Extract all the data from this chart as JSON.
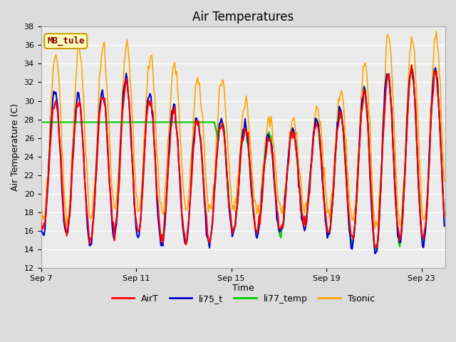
{
  "title": "Air Temperatures",
  "xlabel": "Time",
  "ylabel": "Air Temperature (C)",
  "ylim": [
    12,
    38
  ],
  "yticks": [
    12,
    14,
    16,
    18,
    20,
    22,
    24,
    26,
    28,
    30,
    32,
    34,
    36,
    38
  ],
  "annotation_label": "MB_tule",
  "annotation_color": "#8B0000",
  "annotation_bg": "#FFFFC0",
  "annotation_border": "#C8A000",
  "line_colors": {
    "AirT": "#FF0000",
    "li75_t": "#0000CC",
    "li77_temp": "#00CC00",
    "Tsonic": "#FFA500"
  },
  "x_tick_labels": [
    "Sep 7",
    "Sep 11",
    "Sep 15",
    "Sep 19",
    "Sep 23"
  ],
  "x_tick_positions": [
    0,
    4,
    8,
    12,
    16
  ]
}
